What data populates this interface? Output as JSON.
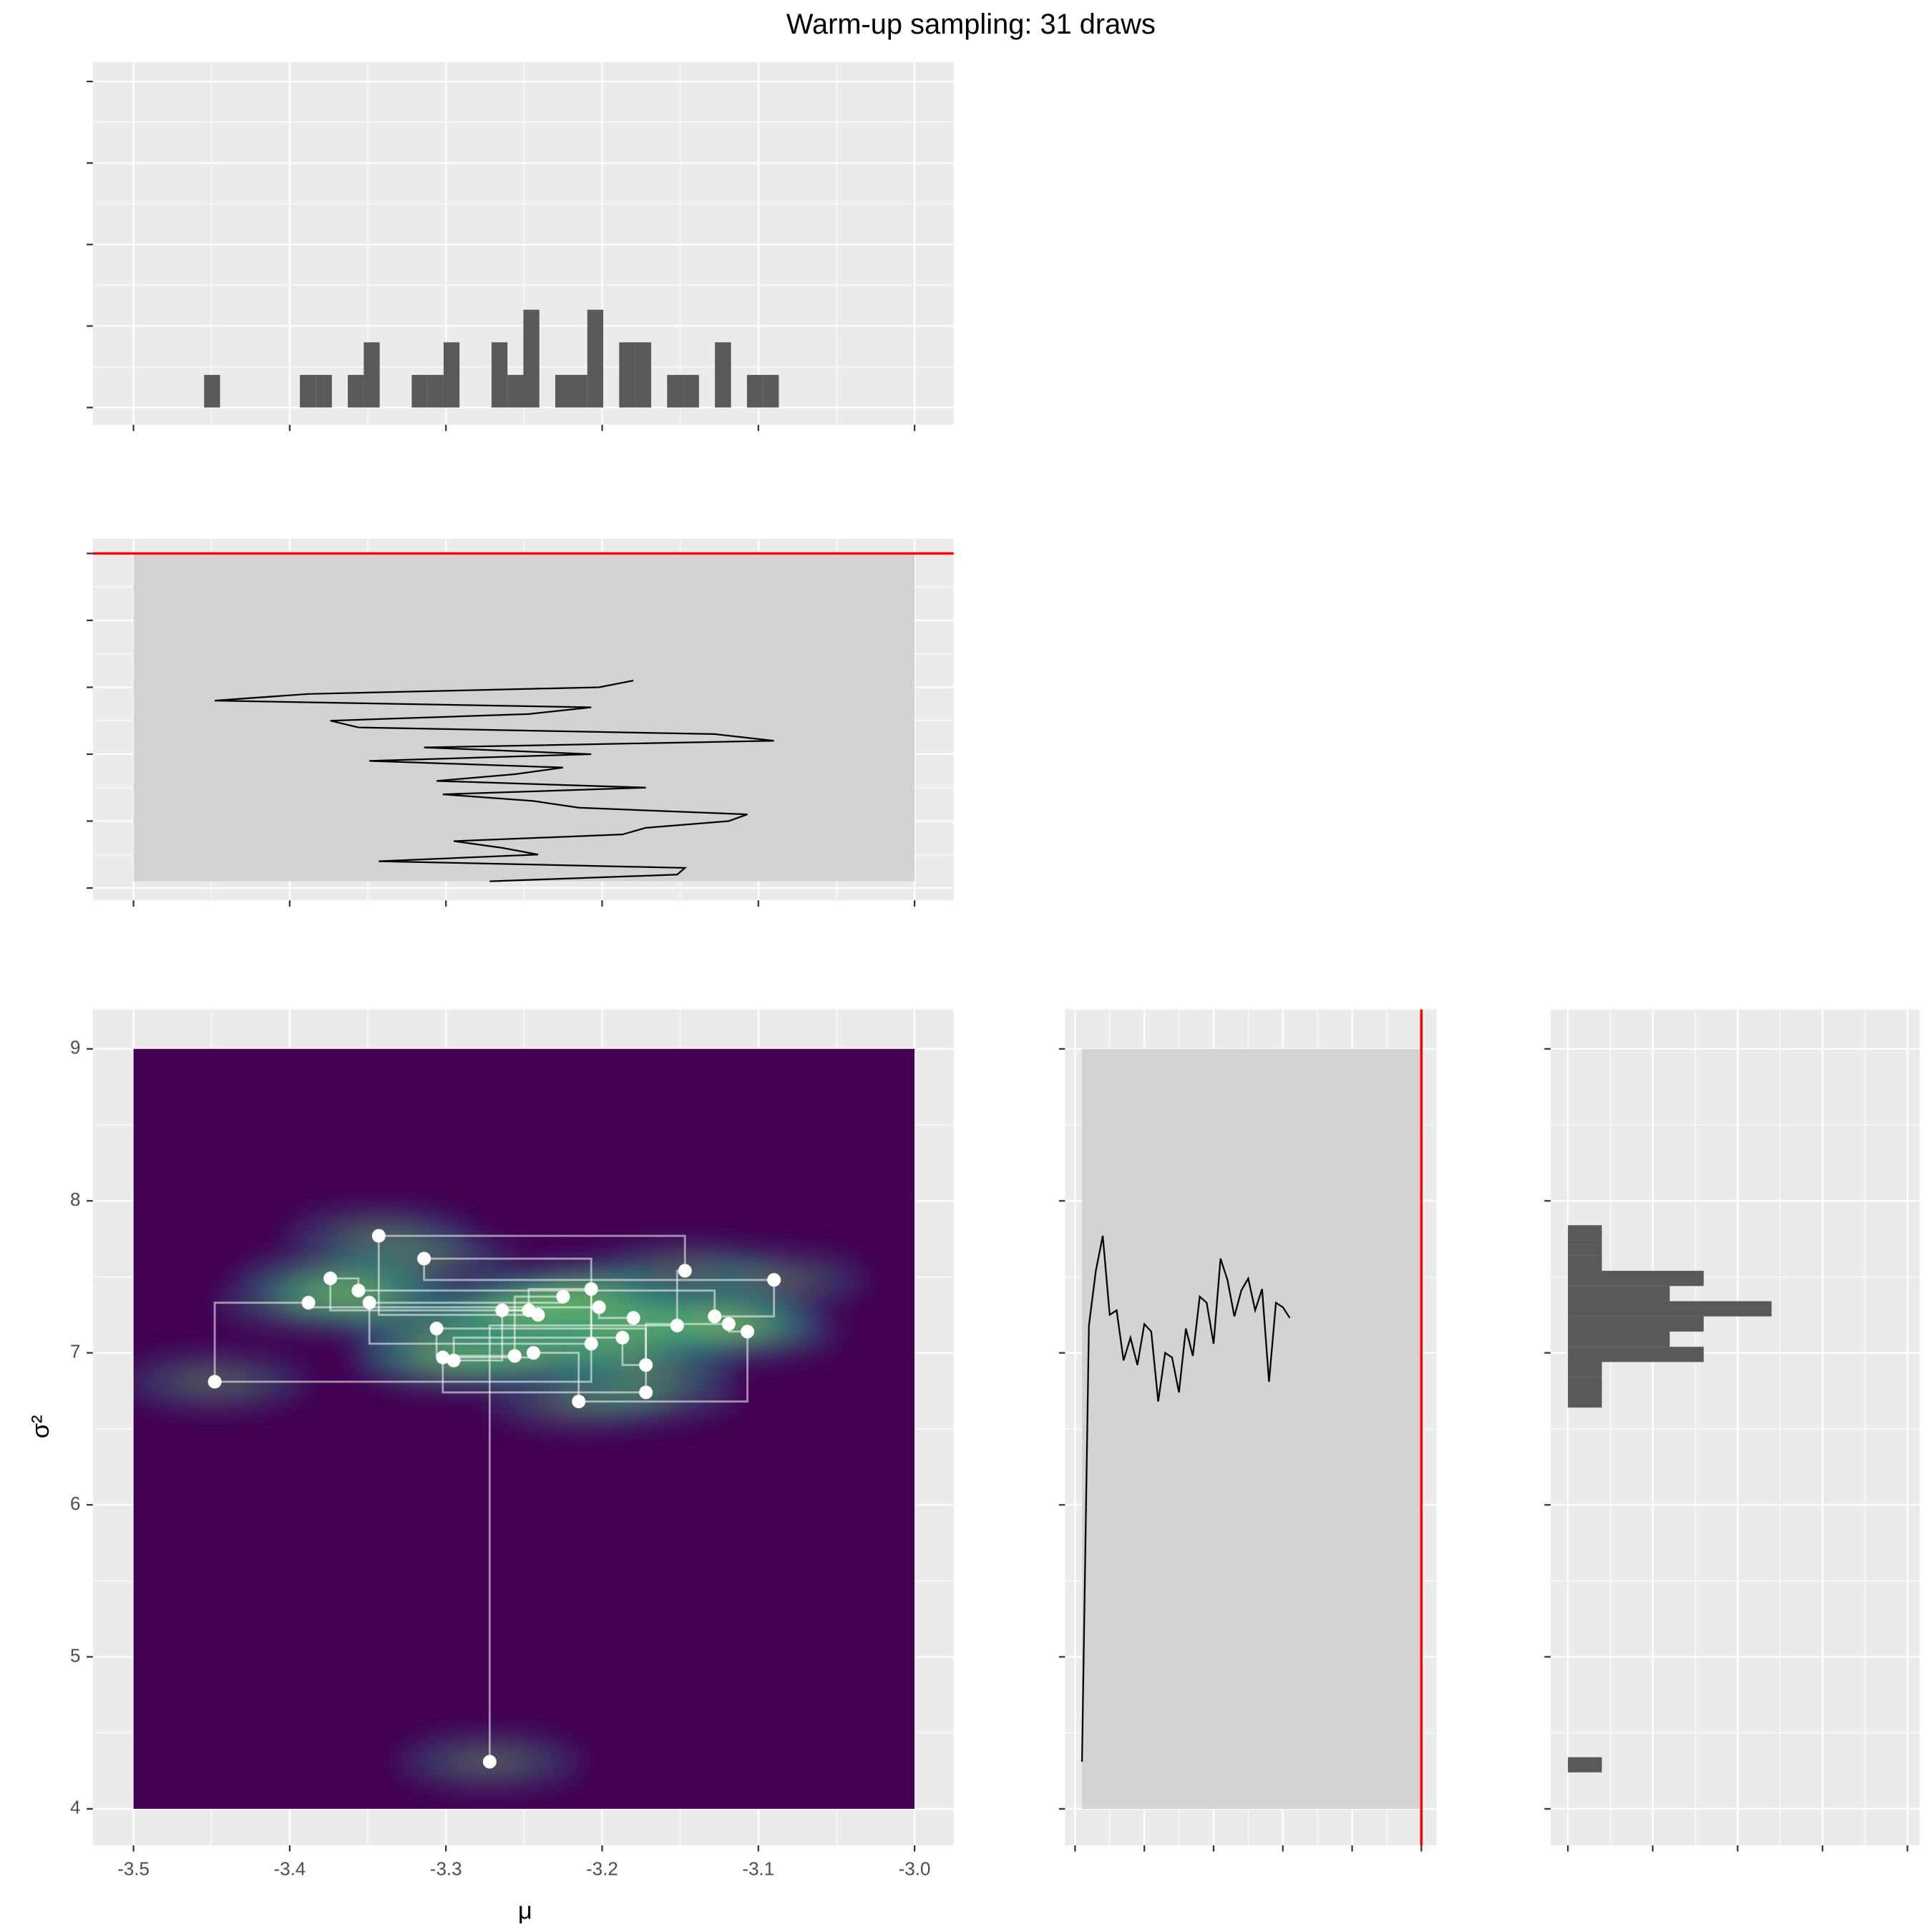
{
  "chart_data": [
    {
      "type": "histogram",
      "orientation": "vertical",
      "color": "#595959",
      "tick_labels": false,
      "bins": [
        -3.4548,
        -3.4446,
        -3.4344,
        -3.4241,
        -3.4139,
        -3.4037,
        -3.3935,
        -3.3833,
        -3.373,
        -3.3628,
        -3.3526,
        -3.3424,
        -3.3322,
        -3.3219,
        -3.3117,
        -3.3015,
        -3.2913,
        -3.2811,
        -3.2708,
        -3.2606,
        -3.2504,
        -3.2402,
        -3.23,
        -3.2197,
        -3.2095,
        -3.1993,
        -3.1891,
        -3.1789,
        -3.1686,
        -3.1584,
        -3.1482,
        -3.138,
        -3.1278,
        -3.1175,
        -3.1073,
        -3.0971,
        -3.0869
      ],
      "values": [
        1,
        0,
        0,
        0,
        0,
        0,
        1,
        1,
        0,
        1,
        2,
        0,
        0,
        1,
        1,
        2,
        0,
        0,
        2,
        1,
        3,
        0,
        1,
        1,
        3,
        0,
        2,
        2,
        0,
        1,
        1,
        0,
        2,
        0,
        1,
        1
      ],
      "xlim": [
        -3.526,
        -2.975
      ],
      "xticks": [
        -3.5,
        -3.4,
        -3.3,
        -3.2,
        -3.1,
        -3.0
      ],
      "ylim": [
        -0.53,
        10.6
      ],
      "yticks": [
        0,
        2.5,
        5,
        7.5,
        10
      ]
    },
    {
      "type": "trace",
      "orientation": "vertical",
      "line_color": "#000000",
      "window_color": "#d3d3d3",
      "limit_color": "#ff0000",
      "tick_labels": false,
      "iterations": [
        1,
        2,
        3,
        4,
        5,
        6,
        7,
        8,
        9,
        10,
        11,
        12,
        13,
        14,
        15,
        16,
        17,
        18,
        19,
        20,
        21,
        22,
        23,
        24,
        25,
        26,
        27,
        28,
        29,
        30,
        31
      ],
      "values": [
        -3.272,
        -3.152,
        -3.147,
        -3.343,
        -3.241,
        -3.264,
        -3.295,
        -3.187,
        -3.172,
        -3.119,
        -3.107,
        -3.215,
        -3.244,
        -3.302,
        -3.172,
        -3.306,
        -3.256,
        -3.225,
        -3.349,
        -3.207,
        -3.314,
        -3.09,
        -3.128,
        -3.356,
        -3.374,
        -3.247,
        -3.207,
        -3.448,
        -3.388,
        -3.202,
        -3.18
      ],
      "window_values": [
        -3.5,
        -3.0
      ],
      "window_iterations": [
        1,
        50
      ],
      "xlim": [
        -3.526,
        -2.975
      ],
      "xticks": [
        -3.5,
        -3.4,
        -3.3,
        -3.2,
        -3.1,
        -3.0
      ],
      "ylim": [
        -1.85,
        52.2
      ],
      "yticks": [
        0,
        10,
        20,
        30,
        40,
        50
      ]
    },
    {
      "type": "scatter",
      "title": "Warm-up sampling: 31 draws",
      "x_label": "μ",
      "y_label": "σ²",
      "tick_labels": true,
      "point_color": "#ffffff",
      "path_color": "#ffffff",
      "density_colors": [
        "#440154",
        "#21918c",
        "#5ec962",
        "#fde725"
      ],
      "density_xlim": [
        -3.5,
        -3.0
      ],
      "density_ylim": [
        4,
        9
      ],
      "x": [
        -3.272,
        -3.152,
        -3.147,
        -3.343,
        -3.241,
        -3.264,
        -3.295,
        -3.187,
        -3.172,
        -3.119,
        -3.107,
        -3.215,
        -3.244,
        -3.302,
        -3.172,
        -3.306,
        -3.256,
        -3.225,
        -3.349,
        -3.207,
        -3.314,
        -3.09,
        -3.128,
        -3.356,
        -3.374,
        -3.247,
        -3.207,
        -3.448,
        -3.388,
        -3.202,
        -3.18
      ],
      "y": [
        4.31,
        7.18,
        7.54,
        7.77,
        7.25,
        7.28,
        6.95,
        7.1,
        6.92,
        7.19,
        7.14,
        6.68,
        7.0,
        6.97,
        6.74,
        7.16,
        6.98,
        7.37,
        7.33,
        7.06,
        7.62,
        7.48,
        7.24,
        7.41,
        7.49,
        7.28,
        7.42,
        6.81,
        7.33,
        7.3,
        7.23
      ],
      "xlim": [
        -3.526,
        -2.975
      ],
      "xticks": [
        -3.5,
        -3.4,
        -3.3,
        -3.2,
        -3.1,
        {
          "value": -3,
          "label": "-3.0"
        }
      ],
      "ylim": [
        3.76,
        9.26
      ],
      "yticks": [
        4,
        5,
        6,
        7,
        8,
        9
      ]
    },
    {
      "type": "trace",
      "orientation": "horizontal",
      "line_color": "#000000",
      "window_color": "#d3d3d3",
      "limit_color": "#ff0000",
      "tick_labels": false,
      "iterations": [
        1,
        2,
        3,
        4,
        5,
        6,
        7,
        8,
        9,
        10,
        11,
        12,
        13,
        14,
        15,
        16,
        17,
        18,
        19,
        20,
        21,
        22,
        23,
        24,
        25,
        26,
        27,
        28,
        29,
        30,
        31
      ],
      "values": [
        4.31,
        7.18,
        7.54,
        7.77,
        7.25,
        7.28,
        6.95,
        7.1,
        6.92,
        7.19,
        7.14,
        6.68,
        7.0,
        6.97,
        6.74,
        7.16,
        6.98,
        7.37,
        7.33,
        7.06,
        7.62,
        7.48,
        7.24,
        7.41,
        7.49,
        7.28,
        7.42,
        6.81,
        7.33,
        7.3,
        7.23
      ],
      "window_values": [
        4,
        9
      ],
      "window_iterations": [
        1,
        50
      ],
      "xlim": [
        -1.44,
        52.2
      ],
      "xticks": [
        0,
        10,
        20,
        30,
        40,
        50
      ],
      "ylim": [
        3.76,
        9.26
      ],
      "yticks": [
        4,
        5,
        6,
        7,
        8,
        9
      ]
    },
    {
      "type": "histogram",
      "orientation": "horizontal",
      "color": "#595959",
      "tick_labels": false,
      "bins": [
        4.24,
        4.34,
        4.44,
        4.54,
        4.64,
        4.74,
        4.84,
        4.94,
        5.04,
        5.14,
        5.24,
        5.34,
        5.44,
        5.54,
        5.64,
        5.74,
        5.84,
        5.94,
        6.04,
        6.14,
        6.24,
        6.34,
        6.44,
        6.54,
        6.64,
        6.74,
        6.84,
        6.94,
        7.04,
        7.14,
        7.24,
        7.34,
        7.44,
        7.54,
        7.64,
        7.74,
        7.84
      ],
      "values": [
        1,
        0,
        0,
        0,
        0,
        0,
        0,
        0,
        0,
        0,
        0,
        0,
        0,
        0,
        0,
        0,
        0,
        0,
        0,
        0,
        0,
        0,
        0,
        0,
        1,
        1,
        1,
        4,
        3,
        4,
        6,
        3,
        4,
        1,
        1,
        1
      ],
      "xlim": [
        -0.51,
        10.36
      ],
      "xticks": [
        0,
        2.5,
        5,
        7.5,
        10
      ],
      "ylim": [
        3.76,
        9.26
      ],
      "yticks": [
        4,
        5,
        6,
        7,
        8,
        9
      ]
    }
  ]
}
